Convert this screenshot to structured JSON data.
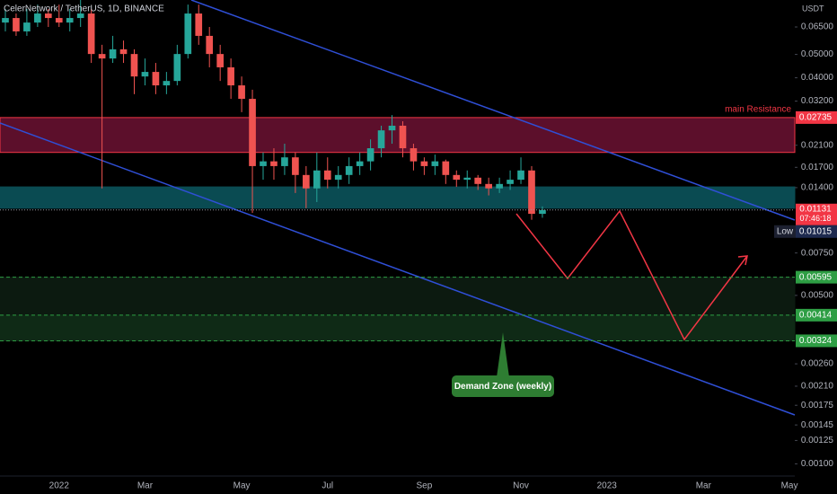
{
  "chart_data": {
    "type": "candlestick",
    "title": "CelerNetwork / TetherUS, 1D, BINANCE",
    "y_unit_label": "USDT",
    "categories": [
      null,
      null,
      null,
      null,
      null,
      "2022",
      null,
      null,
      null,
      null,
      null,
      null,
      null,
      "Mar",
      null,
      null,
      null,
      null,
      null,
      null,
      null,
      null,
      "May",
      null,
      null,
      null,
      null,
      null,
      null,
      null,
      "Jul",
      null,
      null,
      null,
      null,
      null,
      null,
      null,
      null,
      "Sep",
      null,
      null,
      null,
      null,
      null,
      null,
      null,
      null,
      "Nov",
      null,
      null,
      null,
      null,
      null,
      null,
      null,
      "2023",
      null,
      null,
      null,
      null,
      null,
      null,
      null,
      null,
      "Mar",
      null,
      null,
      null,
      null,
      null,
      null,
      null,
      "May"
    ],
    "series": {
      "open": [
        0.0678,
        0.0708,
        0.0623,
        0.0678,
        0.0739,
        0.0708,
        0.0678,
        0.0708,
        0.0739,
        0.0502,
        0.0481,
        0.0525,
        0.0502,
        0.0405,
        0.0423,
        0.0372,
        0.0388,
        0.0502,
        0.0739,
        0.0597,
        0.0502,
        0.0442,
        0.0372,
        0.0327,
        0.0172,
        0.018,
        0.0172,
        0.0187,
        0.0158,
        0.0139,
        0.0165,
        0.0151,
        0.0158,
        0.0172,
        0.018,
        0.0204,
        0.0242,
        0.0253,
        0.0204,
        0.018,
        0.0172,
        0.018,
        0.0158,
        0.0151,
        0.0154,
        0.0145,
        0.0139,
        0.0145,
        0.0151,
        0.0165,
        0.0109,
        null,
        null,
        null,
        null,
        null,
        null,
        null,
        null,
        null,
        null,
        null,
        null,
        null,
        null,
        null,
        null,
        null,
        null,
        null,
        null,
        null,
        null,
        null
      ],
      "high": [
        0.0772,
        0.0739,
        0.0772,
        0.0805,
        0.0772,
        0.0805,
        0.0772,
        0.0841,
        0.0772,
        0.0548,
        0.0597,
        0.0571,
        0.0525,
        0.0481,
        0.0461,
        0.0423,
        0.0548,
        0.0805,
        0.0805,
        0.065,
        0.0548,
        0.0481,
        0.0405,
        0.0357,
        0.0196,
        0.0204,
        0.0213,
        0.0196,
        0.0172,
        0.0196,
        0.0187,
        0.0172,
        0.0187,
        0.0196,
        0.0222,
        0.0253,
        0.028,
        0.0264,
        0.0213,
        0.0187,
        0.0192,
        0.0183,
        0.0165,
        0.0165,
        0.0158,
        0.0154,
        0.0154,
        0.0165,
        0.0187,
        0.0172,
        0.0117,
        null,
        null,
        null,
        null,
        null,
        null,
        null,
        null,
        null,
        null,
        null,
        null,
        null,
        null,
        null,
        null,
        null,
        null,
        null,
        null,
        null,
        null,
        null
      ],
      "low": [
        0.0623,
        0.0597,
        0.0597,
        0.065,
        0.065,
        0.065,
        0.0623,
        0.065,
        0.0461,
        0.0139,
        0.0461,
        0.0461,
        0.0342,
        0.0372,
        0.0342,
        0.0342,
        0.0372,
        0.0481,
        0.0548,
        0.0442,
        0.0388,
        0.0327,
        0.0288,
        0.011,
        0.0151,
        0.0151,
        0.0158,
        0.0133,
        0.0115,
        0.0122,
        0.0139,
        0.0139,
        0.0145,
        0.0158,
        0.0165,
        0.0187,
        0.0213,
        0.0187,
        0.0165,
        0.0158,
        0.0158,
        0.0145,
        0.0141,
        0.0139,
        0.0137,
        0.013,
        0.0133,
        0.0137,
        0.0145,
        0.0103,
        0.0105,
        null,
        null,
        null,
        null,
        null,
        null,
        null,
        null,
        null,
        null,
        null,
        null,
        null,
        null,
        null,
        null,
        null,
        null,
        null,
        null,
        null,
        null,
        null
      ],
      "close": [
        0.0708,
        0.0623,
        0.0678,
        0.0739,
        0.0708,
        0.0678,
        0.0708,
        0.0739,
        0.0502,
        0.0481,
        0.0525,
        0.0502,
        0.0405,
        0.0423,
        0.0372,
        0.0388,
        0.0502,
        0.0739,
        0.0597,
        0.0502,
        0.0442,
        0.0372,
        0.0327,
        0.0172,
        0.018,
        0.0172,
        0.0187,
        0.0158,
        0.0139,
        0.0165,
        0.0151,
        0.0158,
        0.0172,
        0.018,
        0.0204,
        0.0242,
        0.0253,
        0.0204,
        0.018,
        0.0172,
        0.018,
        0.0158,
        0.0151,
        0.0154,
        0.0145,
        0.0139,
        0.0145,
        0.0151,
        0.0165,
        0.0109,
        0.01131,
        null,
        null,
        null,
        null,
        null,
        null,
        null,
        null,
        null,
        null,
        null,
        null,
        null,
        null,
        null,
        null,
        null,
        null,
        null,
        null,
        null,
        null,
        null
      ]
    },
    "up_color": "#26a69a",
    "down_color": "#ef5350",
    "log_scale": true,
    "grid": false,
    "ylim": [
      0.00089,
      0.0841
    ],
    "yticks": [
      {
        "value": 0.065,
        "label": "0.06500"
      },
      {
        "value": 0.05,
        "label": "0.05000"
      },
      {
        "value": 0.04,
        "label": "0.04000"
      },
      {
        "value": 0.032,
        "label": "0.03200"
      },
      {
        "value": 0.021,
        "label": "0.02100"
      },
      {
        "value": 0.017,
        "label": "0.01700"
      },
      {
        "value": 0.014,
        "label": "0.01400"
      },
      {
        "value": 0.0075,
        "label": "0.00750"
      },
      {
        "value": 0.005,
        "label": "0.00500"
      },
      {
        "value": 0.0026,
        "label": "0.00260"
      },
      {
        "value": 0.0021,
        "label": "0.00210"
      },
      {
        "value": 0.00175,
        "label": "0.00175"
      },
      {
        "value": 0.00145,
        "label": "0.00145"
      },
      {
        "value": 0.00125,
        "label": "0.00125"
      },
      {
        "value": 0.001,
        "label": "0.00100"
      }
    ],
    "zones": [
      {
        "top": 0.02735,
        "bottom": 0.0196,
        "color": "#5c0f2b",
        "border": "#f23645"
      },
      {
        "top": 0.0141,
        "bottom": 0.0115,
        "color": "#0a4b52",
        "border": "#0a4b52"
      },
      {
        "top": 0.00595,
        "bottom": 0.00414,
        "color": "#0c1a10",
        "border": "#0c1a10"
      },
      {
        "top": 0.00414,
        "bottom": 0.00324,
        "color": "#0f2a16",
        "border": "#0f2a16"
      }
    ],
    "price_labels": [
      {
        "value": 0.02735,
        "label": "0.02735",
        "color": "#f23645",
        "dashed": false
      },
      {
        "value": 0.00595,
        "label": "0.00595",
        "color": "#2e9e44",
        "dashed": true
      },
      {
        "value": 0.00414,
        "label": "0.00414",
        "color": "#2e9e44",
        "dashed": true
      },
      {
        "value": 0.00324,
        "label": "0.00324",
        "color": "#2e9e44",
        "dashed": true
      }
    ],
    "resistance_label": "main Resistance",
    "last_price": {
      "value": 0.01131,
      "label": "0.01131",
      "countdown": "07:46:18",
      "color": "#f23645"
    },
    "low_marker": {
      "name": "Low",
      "value": 0.01015,
      "label": "0.01015"
    },
    "callout": "Demand Zone (weekly)"
  }
}
